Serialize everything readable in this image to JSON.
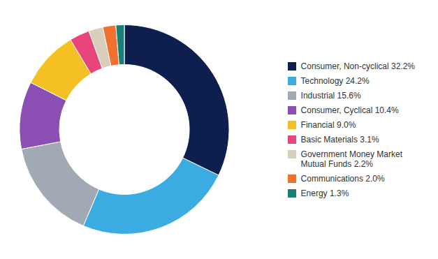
{
  "chart_data": {
    "type": "donut",
    "categories": [
      "Consumer, Non-cyclical 32.2%",
      "Technology 24.2%",
      "Industrial 15.6%",
      "Consumer, Cyclical 10.4%",
      "Financial 9.0%",
      "Basic Materials 3.1%",
      "Government Money Market\nMutual Funds 2.2%",
      "Communications 2.0%",
      "Energy 1.3%"
    ],
    "values": [
      32.2,
      24.2,
      15.6,
      10.4,
      9.0,
      3.1,
      2.2,
      2.0,
      1.3
    ],
    "colors": [
      "#0d1f4e",
      "#3aace2",
      "#a0a9b4",
      "#8b4fb3",
      "#f5c024",
      "#e8457a",
      "#d9cebc",
      "#f07030",
      "#1a7f77"
    ],
    "legend": "right"
  }
}
